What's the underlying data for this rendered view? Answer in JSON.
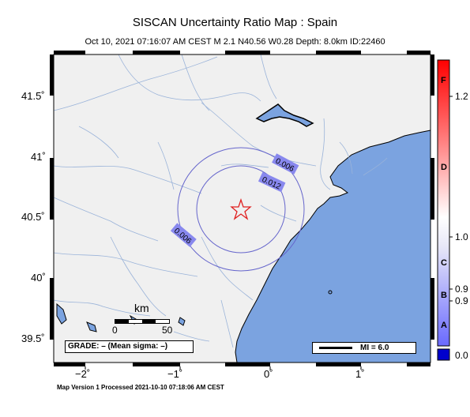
{
  "title": "SISCAN Uncertainty Ratio Map : Spain",
  "subtitle": "Oct 10, 2021 07:16:07 AM CEST   M 2.1   N40.56 W0.28   Depth: 8.0km   ID:22460",
  "axes": {
    "latitude_labels": [
      "41.5˚",
      "41˚",
      "40.5˚",
      "40˚",
      "39.5˚"
    ],
    "longitude_labels": [
      "−2˚",
      "−1˚",
      "0˚",
      "1˚"
    ]
  },
  "contours": [
    "0.006",
    "0.012",
    "0.006"
  ],
  "scale_bar": {
    "unit": "km",
    "ticks": [
      "0",
      "50"
    ]
  },
  "grade_text": "GRADE: – (Mean sigma: –)",
  "mi_text": "MI = 6.0",
  "colorbar": {
    "letters": [
      "F",
      "D",
      "C",
      "B",
      "A"
    ],
    "values": [
      "1.2",
      "1.0",
      "0.9",
      "0.9",
      "0.0"
    ]
  },
  "footer": "Map Version 1 Processed 2021-10-10 07:18:06 AM CEST",
  "colors": {
    "land": "#f0f0f0",
    "sea": "#7ba3e0",
    "rivers": "#9ab3d9",
    "contour": "#6666cc",
    "epicenter": "#e02020"
  },
  "epicenter_marker": "star-icon"
}
